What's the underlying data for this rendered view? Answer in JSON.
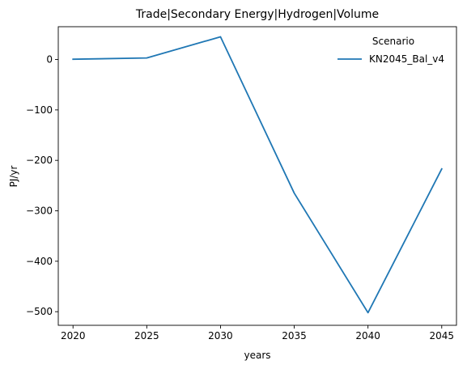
{
  "chart_data": {
    "type": "line",
    "title": "Trade|Secondary Energy|Hydrogen|Volume",
    "xlabel": "years",
    "ylabel": "PJ/yr",
    "x": [
      2020,
      2025,
      2030,
      2035,
      2040,
      2045
    ],
    "xticks": [
      "2020",
      "2025",
      "2030",
      "2035",
      "2040",
      "2045"
    ],
    "yticks": [
      0,
      -100,
      -200,
      -300,
      -400,
      -500
    ],
    "ytick_labels": [
      "0",
      "−100",
      "−200",
      "−300",
      "−400",
      "−500"
    ],
    "xlim": [
      2019.0,
      2046.0
    ],
    "ylim": [
      -527,
      65
    ],
    "grid": false,
    "legend": {
      "title": "Scenario",
      "placement": "top-right"
    },
    "series": [
      {
        "name": "KN2045_Bal_v4",
        "color": "#1f77b4",
        "values": [
          0.5,
          3,
          45,
          -265,
          -502,
          -217
        ]
      }
    ]
  }
}
